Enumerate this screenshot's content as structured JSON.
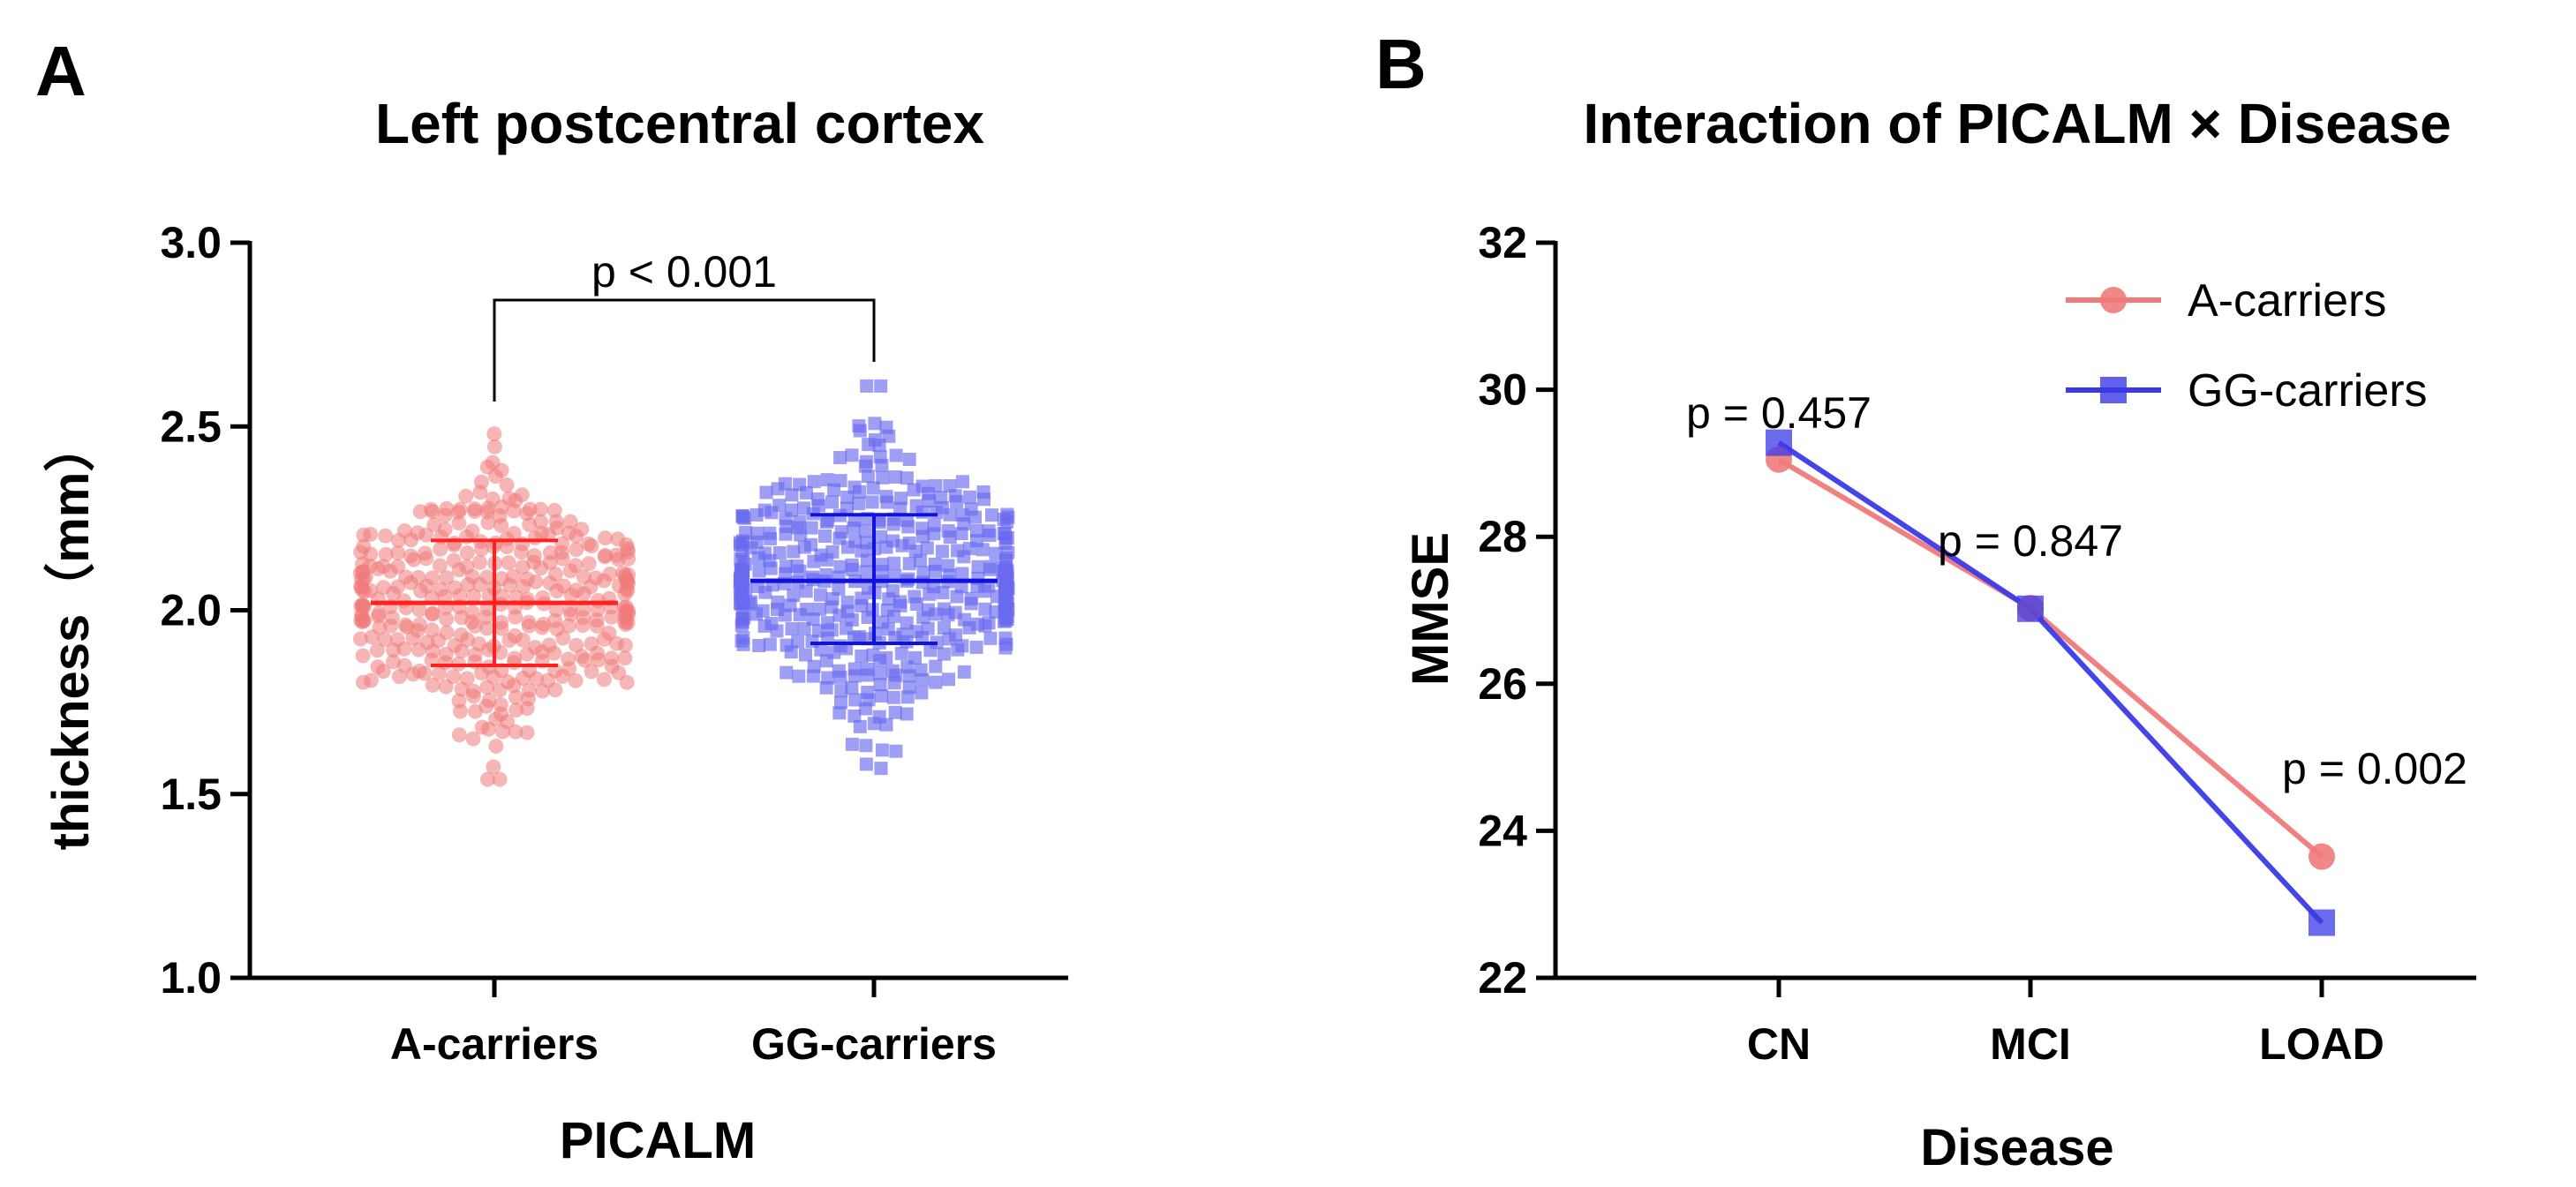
{
  "chart_data": [
    {
      "panel": "A",
      "type": "scatter",
      "title": "Left postcentral cortex",
      "xlabel": "PICALM",
      "ylabel": "thickness（mm）",
      "ylim": [
        1.0,
        3.0
      ],
      "yticks": [
        "1.0",
        "1.5",
        "2.0",
        "2.5",
        "3.0"
      ],
      "yticks_values": [
        1.0,
        1.5,
        2.0,
        2.5,
        3.0
      ],
      "categories": [
        "A-carriers",
        "GG-carriers"
      ],
      "groups": [
        {
          "name": "A-carriers",
          "color": "#f07a7a",
          "line_color": "#ff2020",
          "marker": "circle",
          "mean": 2.02,
          "sd_low": 1.85,
          "sd_high": 2.19,
          "min": 1.54,
          "max": 2.48,
          "n": 380
        },
        {
          "name": "GG-carriers",
          "color": "#6a6af0",
          "line_color": "#1010e0",
          "marker": "square",
          "mean": 2.08,
          "sd_low": 1.91,
          "sd_high": 2.26,
          "min": 1.57,
          "max": 2.61,
          "n": 450
        }
      ],
      "bracket_label": "p < 0.001"
    },
    {
      "panel": "B",
      "type": "line",
      "title": "Interaction of PICALM × Disease",
      "xlabel": "Disease",
      "ylabel": "MMSE",
      "ylim": [
        22,
        32
      ],
      "yticks": [
        "22",
        "24",
        "26",
        "28",
        "30",
        "32"
      ],
      "yticks_values": [
        22,
        24,
        26,
        28,
        30,
        32
      ],
      "categories": [
        "CN",
        "MCI",
        "LOAD"
      ],
      "series": [
        {
          "name": "A-carriers",
          "color": "#f07a7a",
          "marker": "circle",
          "values": [
            29.05,
            27.03,
            23.65
          ]
        },
        {
          "name": "GG-carriers",
          "color": "#3a3ae8",
          "marker": "square",
          "values": [
            29.28,
            27.02,
            22.75
          ]
        }
      ],
      "annotations": [
        "p = 0.457",
        "p = 0.847",
        "p = 0.002"
      ],
      "legend_position": "top-right"
    }
  ]
}
